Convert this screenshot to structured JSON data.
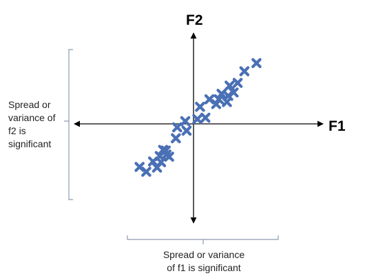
{
  "diagram": {
    "axis_x_label": "F1",
    "axis_y_label": "F2",
    "note_f2_lines": [
      "Spread or",
      "variance of",
      "f2 is",
      "significant"
    ],
    "note_f1_lines": [
      "Spread or variance",
      "of f1 is significant"
    ]
  },
  "colors": {
    "axis": "#000000",
    "marker": "#4a70b5",
    "brace": "#8a9bb0"
  },
  "chart_data": {
    "type": "scatter",
    "marker": "x",
    "x": [
      -7.8,
      -6.8,
      -5.8,
      -5.2,
      -4.6,
      -4.3,
      -4.8,
      -3.9,
      -3.4,
      -3.8,
      -2.4,
      -2.2,
      -1.0,
      -0.8,
      0.8,
      1.2,
      2.0,
      2.6,
      3.6,
      4.4,
      4.0,
      5.4,
      5.6,
      6.8,
      5.2,
      6.2,
      7.8,
      9.6
    ],
    "y": [
      -6.3,
      -7.0,
      -5.5,
      -6.4,
      -5.6,
      -3.8,
      -4.7,
      -3.9,
      -4.8,
      -4.5,
      -2.1,
      -0.5,
      0.4,
      -1.0,
      0.7,
      2.5,
      0.9,
      3.6,
      2.9,
      4.4,
      3.6,
      4.1,
      5.6,
      6.0,
      3.2,
      4.6,
      7.7,
      8.9
    ],
    "xlim": [
      -17.5,
      19.5
    ],
    "ylim": [
      -14.5,
      13.3
    ]
  }
}
